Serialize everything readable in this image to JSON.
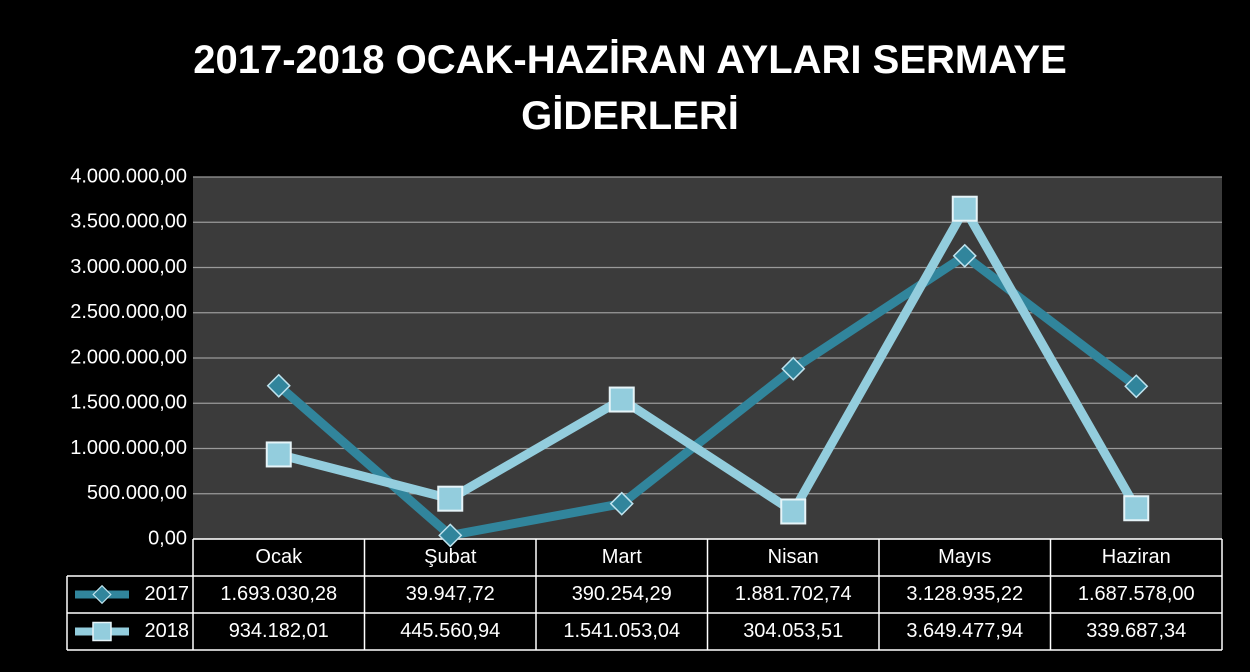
{
  "chart_data": {
    "type": "line",
    "title": "2017-2018 OCAK-HAZİRAN AYLARI SERMAYE GİDERLERİ",
    "categories": [
      "Ocak",
      "Şubat",
      "Mart",
      "Nisan",
      "Mayıs",
      "Haziran"
    ],
    "series": [
      {
        "name": "2017",
        "color": "#31859c",
        "marker": "diamond",
        "values": [
          1693030.28,
          39947.72,
          390254.29,
          1881702.74,
          3128935.22,
          1687578.0
        ],
        "value_labels": [
          "1.693.030,28",
          "39.947,72",
          "390.254,29",
          "1.881.702,74",
          "3.128.935,22",
          "1.687.578,00"
        ]
      },
      {
        "name": "2018",
        "color": "#93cddd",
        "marker": "square",
        "values": [
          934182.01,
          445560.94,
          1541053.04,
          304053.51,
          3649477.94,
          339687.34
        ],
        "value_labels": [
          "934.182,01",
          "445.560,94",
          "1.541.053,04",
          "304.053,51",
          "3.649.477,94",
          "339.687,34"
        ]
      }
    ],
    "ylim": [
      0,
      4000000
    ],
    "yticks": [
      {
        "value": 0,
        "label": "0,00"
      },
      {
        "value": 500000,
        "label": "500.000,00"
      },
      {
        "value": 1000000,
        "label": "1.000.000,00"
      },
      {
        "value": 1500000,
        "label": "1.500.000,00"
      },
      {
        "value": 2000000,
        "label": "2.000.000,00"
      },
      {
        "value": 2500000,
        "label": "2.500.000,00"
      },
      {
        "value": 3000000,
        "label": "3.000.000,00"
      },
      {
        "value": 3500000,
        "label": "3.500.000,00"
      },
      {
        "value": 4000000,
        "label": "4.000.000,00"
      }
    ],
    "grid": true,
    "data_table": true
  }
}
